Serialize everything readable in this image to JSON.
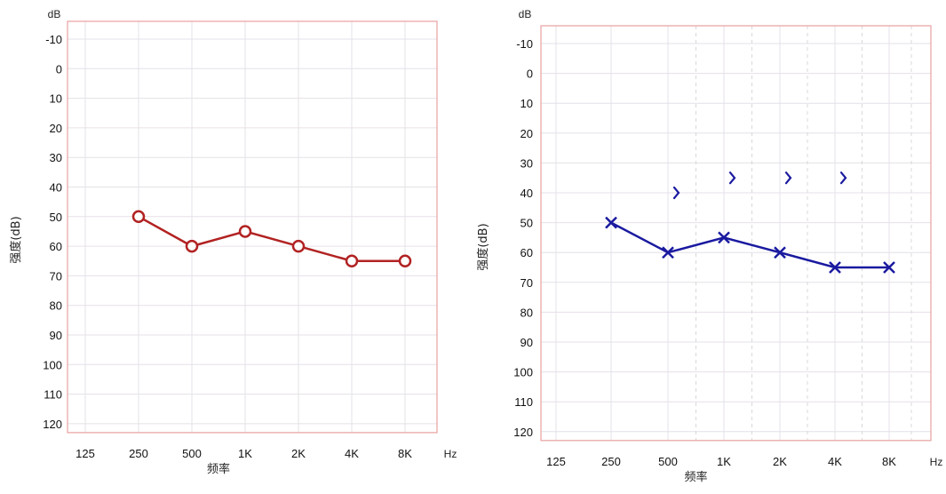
{
  "chart_data": [
    {
      "type": "line",
      "ylabel": "强度(dB)",
      "xlabel": "频率",
      "y_unit": "dB",
      "x_unit": "Hz",
      "y_axis_inverted": true,
      "ylim": [
        -10,
        120
      ],
      "y_ticks": [
        "-10",
        "0",
        "10",
        "20",
        "30",
        "40",
        "50",
        "60",
        "70",
        "80",
        "90",
        "100",
        "110",
        "120"
      ],
      "categories": [
        "125",
        "250",
        "500",
        "1K",
        "2K",
        "4K",
        "8K"
      ],
      "grid": true,
      "colors": {
        "series": "#b22222",
        "frame": "#e8a0a0",
        "grid": "#e6e0e8"
      },
      "series": [
        {
          "marker": "circle",
          "values": [
            null,
            50,
            60,
            55,
            60,
            65,
            65
          ]
        }
      ]
    },
    {
      "type": "line",
      "ylabel": "强度(dB)",
      "xlabel": "频率",
      "y_unit": "dB",
      "x_unit": "Hz",
      "y_axis_inverted": true,
      "ylim": [
        -10,
        120
      ],
      "y_ticks": [
        "-10",
        "0",
        "10",
        "20",
        "30",
        "40",
        "50",
        "60",
        "70",
        "80",
        "90",
        "100",
        "110",
        "120"
      ],
      "categories": [
        "125",
        "250",
        "500",
        "1K",
        "2K",
        "4K",
        "8K"
      ],
      "grid": true,
      "colors": {
        "series": "#1a1aa0",
        "frame": "#e8a0a0",
        "grid": "#e6e0e8"
      },
      "series": [
        {
          "marker": "x",
          "values": [
            null,
            50,
            60,
            55,
            60,
            65,
            65
          ]
        },
        {
          "marker": "chevron",
          "points": [
            {
              "x": "500",
              "y": 40
            },
            {
              "x": "1K",
              "y": 35
            },
            {
              "x": "2K",
              "y": 35
            },
            {
              "x": "4K",
              "y": 35
            }
          ]
        }
      ]
    }
  ]
}
